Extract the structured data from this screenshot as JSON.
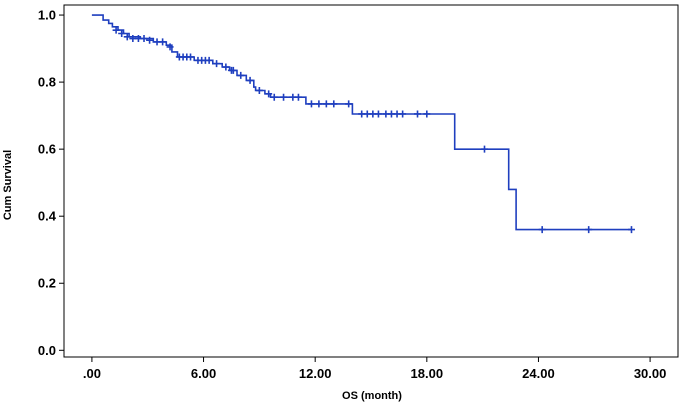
{
  "chart_data": {
    "type": "line",
    "style": "step",
    "xlabel": "OS (month)",
    "ylabel": "Cum Survival",
    "xlim": [
      -1.5,
      31.5
    ],
    "ylim": [
      -0.02,
      1.03
    ],
    "x_ticks": [
      0,
      6,
      12,
      18,
      24,
      30
    ],
    "x_tick_labels": [
      ".00",
      "6.00",
      "12.00",
      "18.00",
      "24.00",
      "30.00"
    ],
    "y_ticks": [
      0,
      0.2,
      0.4,
      0.6,
      0.8,
      1.0
    ],
    "y_tick_labels": [
      "0.0",
      "0.2",
      "0.4",
      "0.6",
      "0.8",
      "1.0"
    ],
    "grid": false,
    "colors": {
      "line": "#1f3fbf",
      "background": "#ffffff",
      "frame": "#000000"
    },
    "series": [
      {
        "steps": [
          [
            0,
            1.0
          ],
          [
            0.6,
            0.985
          ],
          [
            0.9,
            0.975
          ],
          [
            1.1,
            0.965
          ],
          [
            1.4,
            0.955
          ],
          [
            1.7,
            0.945
          ],
          [
            2.0,
            0.935
          ],
          [
            2.6,
            0.93
          ],
          [
            3.3,
            0.92
          ],
          [
            4.0,
            0.91
          ],
          [
            4.3,
            0.89
          ],
          [
            4.6,
            0.875
          ],
          [
            5.5,
            0.865
          ],
          [
            6.5,
            0.855
          ],
          [
            7.0,
            0.845
          ],
          [
            7.4,
            0.835
          ],
          [
            7.8,
            0.82
          ],
          [
            8.3,
            0.805
          ],
          [
            8.7,
            0.785
          ],
          [
            8.8,
            0.775
          ],
          [
            9.3,
            0.765
          ],
          [
            9.6,
            0.755
          ],
          [
            11.5,
            0.735
          ],
          [
            14.0,
            0.705
          ],
          [
            19.5,
            0.6
          ],
          [
            22.4,
            0.48
          ],
          [
            22.8,
            0.36
          ],
          [
            29.0,
            0.36
          ]
        ],
        "censored": [
          [
            1.3,
            0.955
          ],
          [
            1.6,
            0.945
          ],
          [
            1.9,
            0.935
          ],
          [
            2.2,
            0.93
          ],
          [
            2.5,
            0.93
          ],
          [
            2.8,
            0.93
          ],
          [
            3.1,
            0.925
          ],
          [
            3.5,
            0.92
          ],
          [
            3.8,
            0.92
          ],
          [
            4.2,
            0.905
          ],
          [
            4.7,
            0.875
          ],
          [
            4.9,
            0.875
          ],
          [
            5.1,
            0.875
          ],
          [
            5.3,
            0.875
          ],
          [
            5.7,
            0.865
          ],
          [
            5.9,
            0.865
          ],
          [
            6.1,
            0.865
          ],
          [
            6.3,
            0.865
          ],
          [
            6.7,
            0.855
          ],
          [
            7.2,
            0.845
          ],
          [
            7.5,
            0.835
          ],
          [
            7.6,
            0.835
          ],
          [
            8.0,
            0.82
          ],
          [
            8.5,
            0.805
          ],
          [
            9.0,
            0.775
          ],
          [
            9.5,
            0.765
          ],
          [
            9.8,
            0.755
          ],
          [
            10.3,
            0.755
          ],
          [
            10.8,
            0.755
          ],
          [
            11.1,
            0.755
          ],
          [
            11.8,
            0.735
          ],
          [
            12.2,
            0.735
          ],
          [
            12.6,
            0.735
          ],
          [
            13.0,
            0.735
          ],
          [
            13.8,
            0.735
          ],
          [
            14.5,
            0.705
          ],
          [
            14.8,
            0.705
          ],
          [
            15.1,
            0.705
          ],
          [
            15.4,
            0.705
          ],
          [
            15.8,
            0.705
          ],
          [
            16.1,
            0.705
          ],
          [
            16.4,
            0.705
          ],
          [
            16.7,
            0.705
          ],
          [
            17.5,
            0.705
          ],
          [
            18.0,
            0.705
          ],
          [
            21.1,
            0.6
          ],
          [
            24.2,
            0.36
          ],
          [
            26.7,
            0.36
          ],
          [
            29.0,
            0.36
          ]
        ]
      }
    ]
  }
}
